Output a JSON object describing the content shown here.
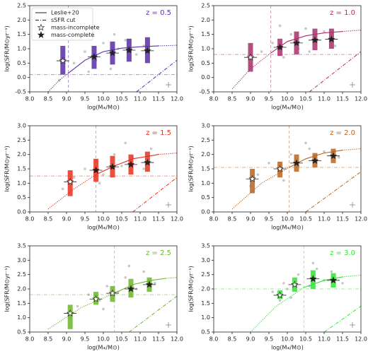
{
  "chart_data": [
    {
      "type": "scatter",
      "title": "z = 0.5",
      "color": "#5a2ca8",
      "xlabel": "log(M⁎/M⊙)",
      "ylabel": "log(SFR/M⊙yr⁻¹)",
      "xlim": [
        8,
        12
      ],
      "xticks": [
        {
          "value": 8,
          "label": "8.0"
        },
        8.5,
        {
          "value": 9,
          "label": "9.0"
        },
        9.5,
        {
          "value": 10,
          "label": "10.0"
        },
        10.5,
        {
          "value": 11,
          "label": "11.0"
        },
        11.5,
        {
          "value": 12,
          "label": "12.0"
        }
      ],
      "ylim": [
        -0.5,
        2.5
      ],
      "yticks": [
        -0.5,
        {
          "value": 0,
          "label": "0.0"
        },
        0.5,
        {
          "value": 1,
          "label": "1.0"
        },
        1.5,
        {
          "value": 2,
          "label": "2.0"
        },
        2.5
      ],
      "mass_limit": 9.05,
      "sfr_limit": 0.1,
      "points": {
        "x": [
          9.2,
          9.5,
          9.8,
          10.0,
          10.2,
          10.4,
          10.6,
          10.9,
          11.1,
          9.6,
          10.3,
          8.8
        ],
        "y": [
          0.5,
          0.9,
          0.6,
          1.2,
          0.3,
          1.0,
          1.3,
          0.8,
          1.1,
          0.2,
          1.5,
          -0.1
        ]
      },
      "leslie": [
        {
          "style": "dotted",
          "x": [
            8.5,
            8.8,
            9.05
          ],
          "y": [
            -0.5,
            -0.1,
            0.15
          ]
        },
        {
          "style": "solid",
          "x": [
            9.05,
            9.5,
            10,
            10.5,
            11,
            11.5
          ],
          "y": [
            0.15,
            0.6,
            0.9,
            1.02,
            1.07,
            1.1
          ]
        },
        {
          "style": "dotted",
          "x": [
            11.5,
            12
          ],
          "y": [
            1.1,
            1.12
          ]
        }
      ],
      "ssfr_cut": {
        "x": [
          10.9,
          12
        ],
        "y": [
          -0.5,
          0.6
        ]
      },
      "bins": {
        "x": [
          8.9,
          9.75,
          10.25,
          10.7,
          11.2
        ],
        "y": [
          0.58,
          0.72,
          0.85,
          0.95,
          0.93
        ],
        "low": [
          0.1,
          0.3,
          0.45,
          0.55,
          0.5
        ],
        "high": [
          1.1,
          1.1,
          1.25,
          1.35,
          1.4
        ],
        "complete": [
          false,
          true,
          true,
          true,
          true
        ]
      },
      "legend": [
        {
          "label": "Leslie+20",
          "marker": "solid"
        },
        {
          "label": "sSFR cut",
          "marker": "dashdot"
        },
        {
          "label": "mass-incomplete",
          "marker": "open-star"
        },
        {
          "label": "mass-complete",
          "marker": "filled-star"
        }
      ]
    },
    {
      "type": "scatter",
      "title": "z = 1.0",
      "color": "#a8306a",
      "xlabel": "log(M⁎/M⊙)",
      "ylabel": "log(SFR/M⊙yr⁻¹)",
      "xlim": [
        8,
        12
      ],
      "xticks": [
        {
          "value": 8,
          "label": "8.0"
        },
        8.5,
        {
          "value": 9,
          "label": "9.0"
        },
        9.5,
        {
          "value": 10,
          "label": "10.0"
        },
        10.5,
        {
          "value": 11,
          "label": "11.0"
        },
        11.5,
        {
          "value": 12,
          "label": "12.0"
        }
      ],
      "ylim": [
        -0.5,
        2.5
      ],
      "yticks": [
        -0.5,
        {
          "value": 0,
          "label": "0.0"
        },
        0.5,
        {
          "value": 1,
          "label": "1.0"
        },
        1.5,
        {
          "value": 2,
          "label": "2.0"
        },
        2.5
      ],
      "mass_limit": 9.55,
      "sfr_limit": 0.8,
      "points": {
        "x": [
          9.3,
          9.6,
          9.9,
          10.1,
          10.3,
          10.5,
          10.8,
          11.0,
          11.3,
          9.8,
          10.6,
          9.0
        ],
        "y": [
          0.9,
          1.2,
          0.7,
          1.5,
          1.0,
          1.7,
          1.3,
          1.6,
          1.1,
          1.8,
          0.9,
          0.4
        ]
      },
      "leslie": [
        {
          "style": "dotted",
          "x": [
            8.5,
            9.0,
            9.55
          ],
          "y": [
            -0.4,
            0.3,
            0.85
          ]
        },
        {
          "style": "solid",
          "x": [
            9.55,
            10,
            10.5,
            11,
            11.5
          ],
          "y": [
            0.85,
            1.25,
            1.45,
            1.55,
            1.6
          ]
        },
        {
          "style": "dotted",
          "x": [
            11.5,
            12
          ],
          "y": [
            1.6,
            1.65
          ]
        }
      ],
      "ssfr_cut": {
        "x": [
          10.6,
          12
        ],
        "y": [
          -0.5,
          0.9
        ]
      },
      "bins": {
        "x": [
          9.0,
          9.8,
          10.25,
          10.75,
          11.2
        ],
        "y": [
          0.7,
          1.05,
          1.2,
          1.3,
          1.33
        ],
        "low": [
          0.2,
          0.75,
          0.8,
          0.95,
          1.0
        ],
        "high": [
          1.2,
          1.35,
          1.6,
          1.7,
          1.7
        ],
        "complete": [
          false,
          true,
          true,
          true,
          true
        ]
      }
    },
    {
      "type": "scatter",
      "title": "z = 1.5",
      "color": "#e8301e",
      "xlabel": "log(M⁎/M⊙)",
      "ylabel": "log(SFR/M⊙yr⁻¹)",
      "xlim": [
        8,
        12
      ],
      "xticks": [
        {
          "value": 8,
          "label": "8.0"
        },
        8.5,
        {
          "value": 9,
          "label": "9.0"
        },
        9.5,
        {
          "value": 10,
          "label": "10.0"
        },
        10.5,
        {
          "value": 11,
          "label": "11.0"
        },
        11.5,
        {
          "value": 12,
          "label": "12.0"
        }
      ],
      "ylim": [
        0,
        3
      ],
      "yticks": [
        {
          "value": 0,
          "label": "0.0"
        },
        0.5,
        {
          "value": 1,
          "label": "1.0"
        },
        1.5,
        {
          "value": 2,
          "label": "2.0"
        },
        2.5,
        {
          "value": 3,
          "label": "3.0"
        }
      ],
      "mass_limit": 9.8,
      "sfr_limit": 1.25,
      "points": {
        "x": [
          9.2,
          9.5,
          9.8,
          10.0,
          10.3,
          10.5,
          10.8,
          11.1,
          11.3,
          9.9,
          10.6,
          8.9
        ],
        "y": [
          1.2,
          1.5,
          1.8,
          1.3,
          2.0,
          1.6,
          1.9,
          1.5,
          2.2,
          1.0,
          2.4,
          0.8
        ]
      },
      "leslie": [
        {
          "style": "dotted",
          "x": [
            8.5,
            9.2,
            9.8
          ],
          "y": [
            0.1,
            0.8,
            1.3
          ]
        },
        {
          "style": "solid",
          "x": [
            9.8,
            10.3,
            10.8,
            11.5
          ],
          "y": [
            1.3,
            1.6,
            1.85,
            2.0
          ]
        },
        {
          "style": "dotted",
          "x": [
            11.5,
            12
          ],
          "y": [
            2.0,
            2.05
          ]
        }
      ],
      "ssfr_cut": {
        "x": [
          10.8,
          12
        ],
        "y": [
          0,
          1.2
        ]
      },
      "bins": {
        "x": [
          9.1,
          9.8,
          10.25,
          10.75,
          11.2
        ],
        "y": [
          1.05,
          1.45,
          1.57,
          1.65,
          1.72
        ],
        "low": [
          0.55,
          1.05,
          1.2,
          1.3,
          1.4
        ],
        "high": [
          1.45,
          1.85,
          1.95,
          2.0,
          2.1
        ],
        "complete": [
          false,
          true,
          true,
          true,
          true
        ]
      }
    },
    {
      "type": "scatter",
      "title": "z = 2.0",
      "color": "#b8641e",
      "xlabel": "log(M⁎/M⊙)",
      "ylabel": "log(SFR/M⊙yr⁻¹)",
      "xlim": [
        8,
        12
      ],
      "xticks": [
        {
          "value": 8,
          "label": "8.0"
        },
        8.5,
        {
          "value": 9,
          "label": "9.0"
        },
        9.5,
        {
          "value": 10,
          "label": "10.0"
        },
        10.5,
        {
          "value": 11,
          "label": "11.0"
        },
        11.5,
        {
          "value": 12,
          "label": "12.0"
        }
      ],
      "ylim": [
        0,
        3
      ],
      "yticks": [
        {
          "value": 0,
          "label": "0.0"
        },
        0.5,
        {
          "value": 1,
          "label": "1.0"
        },
        1.5,
        {
          "value": 2,
          "label": "2.0"
        },
        2.5,
        {
          "value": 3,
          "label": "3.0"
        }
      ],
      "mass_limit": 10.05,
      "sfr_limit": 1.55,
      "points": {
        "x": [
          9.2,
          9.5,
          9.8,
          10.1,
          10.3,
          10.6,
          10.8,
          11.0,
          11.4,
          9.9,
          10.5,
          9.0
        ],
        "y": [
          1.3,
          1.7,
          1.4,
          2.0,
          1.6,
          2.2,
          1.8,
          2.1,
          1.9,
          1.1,
          2.4,
          0.9
        ]
      },
      "leslie": [
        {
          "style": "dotted",
          "x": [
            8.5,
            9.3,
            10.05
          ],
          "y": [
            0.1,
            1.0,
            1.55
          ]
        },
        {
          "style": "solid",
          "x": [
            10.05,
            10.5,
            11,
            11.5
          ],
          "y": [
            1.55,
            1.85,
            2.05,
            2.15
          ]
        },
        {
          "style": "dotted",
          "x": [
            11.5,
            12
          ],
          "y": [
            2.15,
            2.2
          ]
        }
      ],
      "ssfr_cut": {
        "x": [
          10.5,
          12
        ],
        "y": [
          0,
          1.4
        ]
      },
      "bins": {
        "x": [
          9.05,
          9.8,
          10.25,
          10.75,
          11.25
        ],
        "y": [
          1.15,
          1.5,
          1.7,
          1.78,
          1.95
        ],
        "low": [
          0.65,
          1.2,
          1.4,
          1.55,
          1.7
        ],
        "high": [
          1.5,
          1.75,
          2.0,
          2.05,
          2.2
        ],
        "complete": [
          false,
          false,
          true,
          true,
          true
        ]
      }
    },
    {
      "type": "scatter",
      "title": "z = 2.5",
      "color": "#6cb42c",
      "xlabel": "log(M⁎/M⊙)",
      "ylabel": "log(SFR/M⊙yr⁻¹)",
      "xlim": [
        8,
        12
      ],
      "xticks": [
        {
          "value": 8,
          "label": "8.0"
        },
        8.5,
        {
          "value": 9,
          "label": "9.0"
        },
        9.5,
        {
          "value": 10,
          "label": "10.0"
        },
        10.5,
        {
          "value": 11,
          "label": "11.0"
        },
        11.5,
        {
          "value": 12,
          "label": "12.0"
        }
      ],
      "ylim": [
        0.5,
        3.5
      ],
      "yticks": [
        0.5,
        {
          "value": 1,
          "label": "1.0"
        },
        1.5,
        {
          "value": 2,
          "label": "2.0"
        },
        2.5,
        {
          "value": 3,
          "label": "3.0"
        },
        3.5
      ],
      "mass_limit": 10.3,
      "sfr_limit": 1.8,
      "points": {
        "x": [
          9.3,
          9.6,
          9.9,
          10.1,
          10.4,
          10.6,
          10.9,
          11.1,
          11.4,
          10.0,
          10.7,
          9.1
        ],
        "y": [
          1.4,
          1.8,
          1.6,
          2.1,
          1.9,
          2.4,
          2.0,
          2.6,
          2.2,
          1.3,
          2.8,
          1.0
        ]
      },
      "leslie": [
        {
          "style": "dotted",
          "x": [
            8.5,
            9.4,
            10.3
          ],
          "y": [
            0.6,
            1.35,
            1.85
          ]
        },
        {
          "style": "solid",
          "x": [
            10.3,
            10.8,
            11.3,
            11.7
          ],
          "y": [
            1.85,
            2.15,
            2.3,
            2.37
          ]
        },
        {
          "style": "dotted",
          "x": [
            11.7,
            12
          ],
          "y": [
            2.37,
            2.4
          ]
        }
      ],
      "ssfr_cut": {
        "x": [
          10.7,
          12
        ],
        "y": [
          0.5,
          1.75
        ]
      },
      "bins": {
        "x": [
          9.1,
          9.8,
          10.25,
          10.75,
          11.25
        ],
        "y": [
          1.15,
          1.65,
          1.85,
          2.0,
          2.15
        ],
        "low": [
          0.6,
          1.45,
          1.55,
          1.7,
          1.9
        ],
        "high": [
          1.45,
          1.9,
          2.1,
          2.35,
          2.4
        ],
        "complete": [
          false,
          false,
          false,
          true,
          true
        ]
      }
    },
    {
      "type": "scatter",
      "title": "z = 3.0",
      "color": "#2ee62e",
      "xlabel": "log(M⁎/M⊙)",
      "ylabel": "log(SFR/M⊙yr⁻¹)",
      "xlim": [
        8,
        12
      ],
      "xticks": [
        {
          "value": 8,
          "label": "8.0"
        },
        8.5,
        {
          "value": 9,
          "label": "9.0"
        },
        9.5,
        {
          "value": 10,
          "label": "10.0"
        },
        10.5,
        {
          "value": 11,
          "label": "11.0"
        },
        11.5,
        {
          "value": 12,
          "label": "12.0"
        }
      ],
      "ylim": [
        0.5,
        3.5
      ],
      "yticks": [
        0.5,
        {
          "value": 1,
          "label": "1.0"
        },
        1.5,
        {
          "value": 2,
          "label": "2.0"
        },
        2.5,
        {
          "value": 3,
          "label": "3.0"
        },
        3.5
      ],
      "mass_limit": 10.45,
      "sfr_limit": 2.0,
      "points": {
        "x": [
          9.6,
          9.9,
          10.1,
          10.3,
          10.6,
          10.8,
          11.0,
          11.2,
          11.5,
          10.0,
          10.7,
          9.8
        ],
        "y": [
          1.9,
          2.2,
          1.7,
          2.5,
          2.1,
          2.7,
          2.3,
          2.6,
          2.2,
          2.0,
          2.9,
          1.6
        ]
      },
      "leslie": [
        {
          "style": "dotted",
          "x": [
            9.0,
            9.7,
            10.45
          ],
          "y": [
            0.5,
            1.4,
            2.05
          ]
        },
        {
          "style": "solid",
          "x": [
            10.45,
            11,
            11.5
          ],
          "y": [
            2.05,
            2.3,
            2.42
          ]
        },
        {
          "style": "dotted",
          "x": [
            11.5,
            12
          ],
          "y": [
            2.42,
            2.48
          ]
        }
      ],
      "ssfr_cut": {
        "x": [
          11.0,
          12
        ],
        "y": [
          0.5,
          1.4
        ]
      },
      "bins": {
        "x": [
          9.8,
          10.2,
          10.7,
          11.25
        ],
        "y": [
          1.78,
          2.15,
          2.35,
          2.3
        ],
        "low": [
          1.65,
          1.9,
          2.0,
          2.05
        ],
        "high": [
          1.95,
          2.4,
          2.65,
          2.55
        ],
        "complete": [
          false,
          false,
          true,
          true
        ]
      }
    }
  ]
}
